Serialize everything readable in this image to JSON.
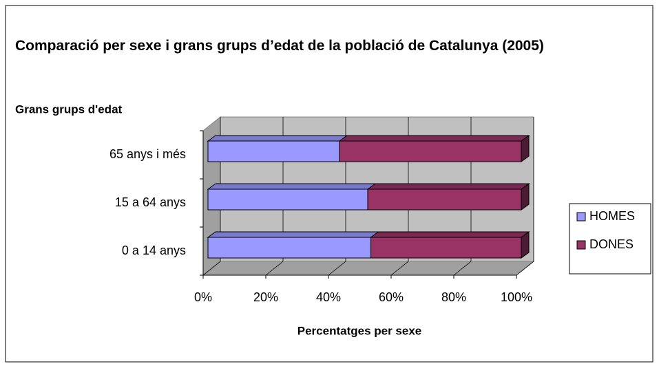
{
  "chart_data": {
    "type": "bar3d_stacked_horizontal",
    "title": "Comparació per sexe i grans grups d’edat de la població de Catalunya (2005)",
    "y_axis_label": "Grans grups d'edat",
    "x_axis_label": "Percentatges per sexe",
    "categories": [
      "0 a 14 anys",
      "15 a 64 anys",
      "65 anys i més"
    ],
    "series": [
      {
        "name": "HOMES",
        "color": "#9999ff",
        "values": [
          52,
          51,
          42
        ]
      },
      {
        "name": "DONES",
        "color": "#993366",
        "values": [
          48,
          49,
          58
        ]
      }
    ],
    "xlim": [
      0,
      100
    ],
    "xticks": [
      {
        "value": 0,
        "label": "0%"
      },
      {
        "value": 20,
        "label": "20%"
      },
      {
        "value": 40,
        "label": "40%"
      },
      {
        "value": 60,
        "label": "60%"
      },
      {
        "value": 80,
        "label": "80%"
      },
      {
        "value": 100,
        "label": "100%"
      }
    ],
    "grid": true,
    "legend": "right"
  }
}
